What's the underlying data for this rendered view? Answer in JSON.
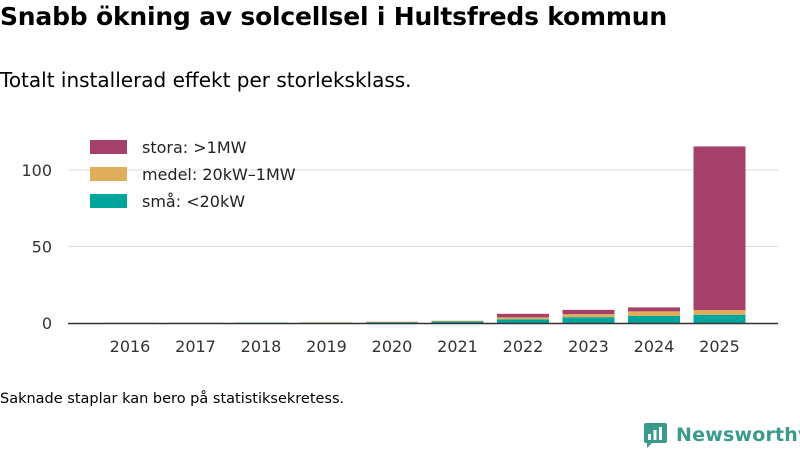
{
  "header": {
    "title": "Snabb ökning av solcellsel i Hultsfreds kommun",
    "subtitle": "Totalt installerad effekt per storleksklass."
  },
  "footer": {
    "note": "Saknade staplar kan bero på statistiksekretess.",
    "brand": "Newsworthy"
  },
  "colors": {
    "stora": "#a5406a",
    "medel": "#e0ad5a",
    "sma": "#00a59b",
    "grid": "#dddddd",
    "axis": "#333333",
    "brand": "#3a9a8c"
  },
  "chart_data": {
    "type": "bar",
    "stacked": true,
    "title": "Snabb ökning av solcellsel i Hultsfreds kommun",
    "subtitle": "Totalt installerad effekt per storleksklass.",
    "xlabel": "",
    "ylabel": "",
    "ylim": [
      0,
      125
    ],
    "yticks": [
      0,
      50,
      100
    ],
    "grid": true,
    "legend_position": "top-left",
    "categories": [
      "2016",
      "2017",
      "2018",
      "2019",
      "2020",
      "2021",
      "2022",
      "2023",
      "2024",
      "2025"
    ],
    "series": [
      {
        "name": "små: <20kW",
        "color": "#00a59b",
        "values": [
          0.1,
          0.1,
          0.2,
          0.3,
          0.5,
          1.0,
          2.4,
          3.8,
          4.6,
          5.4
        ]
      },
      {
        "name": "medel: 20kW–1MW",
        "color": "#e0ad5a",
        "values": [
          0.0,
          0.0,
          0.0,
          0.1,
          0.4,
          0.5,
          1.3,
          2.0,
          3.0,
          3.0
        ]
      },
      {
        "name": "stora: >1MW",
        "color": "#a5406a",
        "values": [
          0.0,
          0.0,
          0.0,
          0.0,
          0.0,
          0.0,
          2.3,
          2.8,
          2.6,
          107.0
        ]
      }
    ]
  }
}
